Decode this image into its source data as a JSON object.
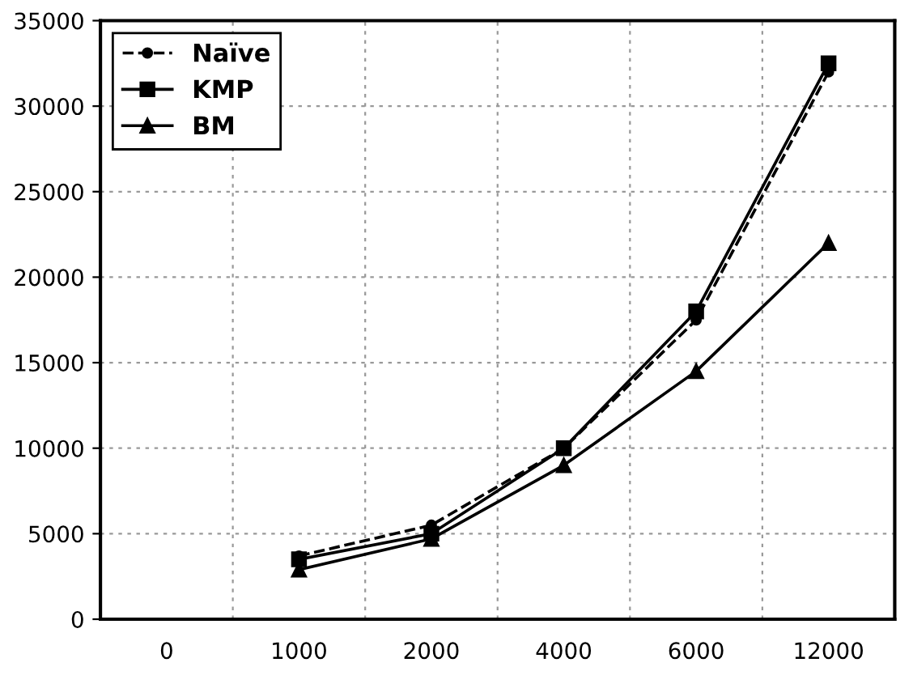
{
  "chart_data": {
    "type": "line",
    "categories": [
      "0",
      "1000",
      "2000",
      "4000",
      "6000",
      "12000"
    ],
    "series": [
      {
        "name": "Naïve",
        "color": "#000000",
        "marker": "circle",
        "line_style": "dashed",
        "values": [
          null,
          3700,
          5500,
          10000,
          17500,
          32000
        ]
      },
      {
        "name": "KMP",
        "color": "#000000",
        "marker": "square",
        "line_style": "solid",
        "values": [
          null,
          3500,
          5000,
          10000,
          18000,
          32500
        ]
      },
      {
        "name": "BM",
        "color": "#000000",
        "marker": "triangle",
        "line_style": "solid",
        "values": [
          null,
          2900,
          4700,
          9000,
          14500,
          22000
        ]
      }
    ],
    "ylim": [
      0,
      35000
    ],
    "yticks": [
      0,
      5000,
      10000,
      15000,
      20000,
      25000,
      30000,
      35000
    ],
    "grid": true,
    "legend": "top left"
  }
}
